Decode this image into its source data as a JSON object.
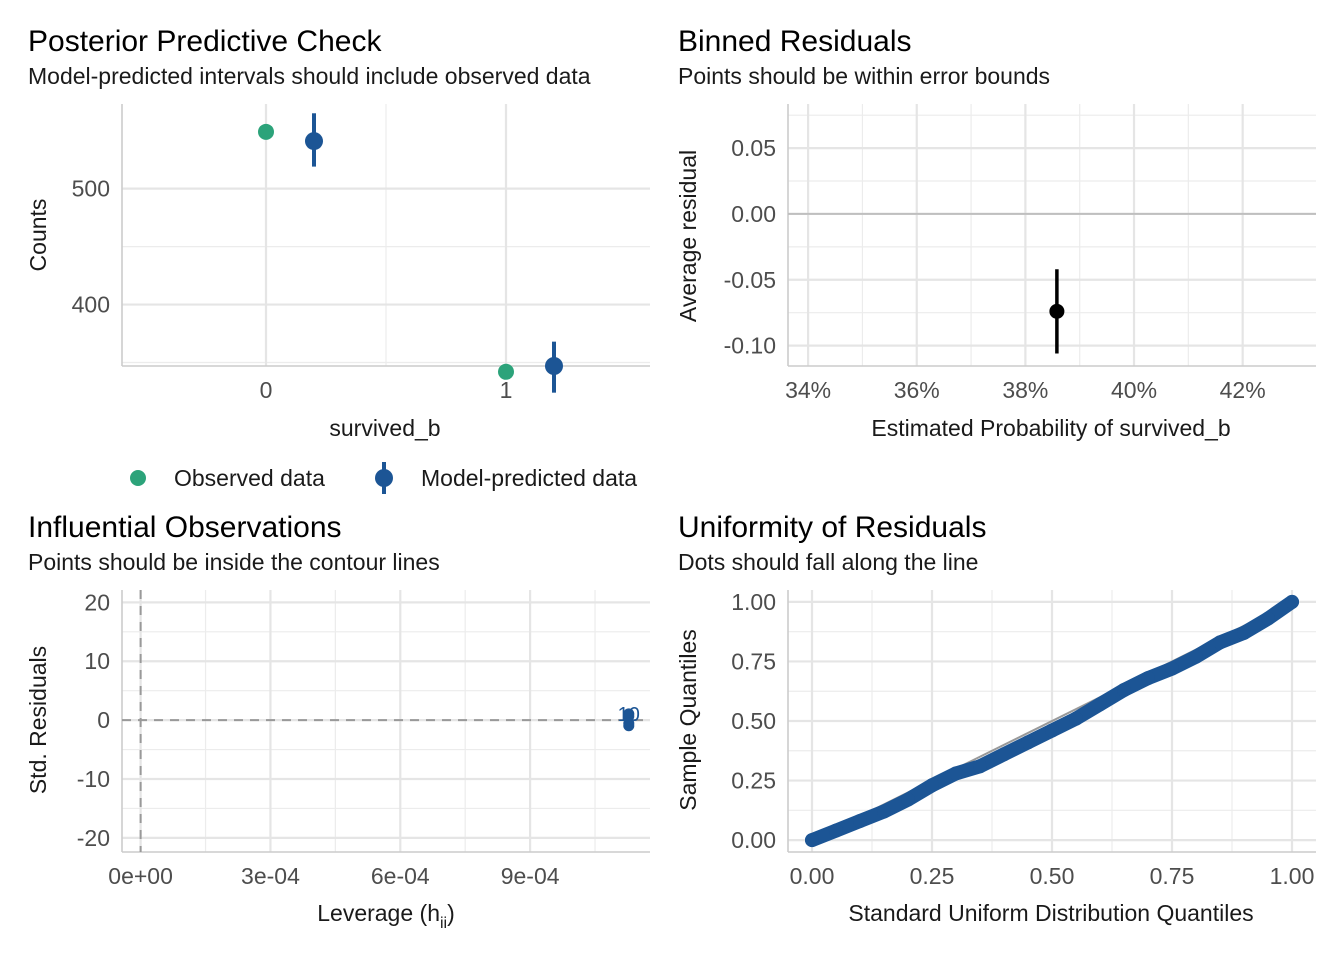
{
  "colors": {
    "observed": "#2ca37a",
    "predicted": "#1c5595",
    "binned_point": "#000000",
    "qq_points": "#1c5595",
    "reference_line": "#999999",
    "zero_line": "#bfbfbf"
  },
  "panels": {
    "ppc": {
      "title": "Posterior Predictive Check",
      "subtitle": "Model-predicted intervals should include observed data",
      "xlabel": "survived_b",
      "ylabel": "Counts",
      "legend": {
        "observed": "Observed data",
        "predicted": "Model-predicted data"
      }
    },
    "binned": {
      "title": "Binned Residuals",
      "subtitle": "Points should be within error bounds",
      "xlabel": "Estimated Probability of survived_b",
      "ylabel": "Average residual"
    },
    "influence": {
      "title": "Influential Observations",
      "subtitle": "Points should be inside the contour lines",
      "xlabel_main": "Leverage (h",
      "xlabel_sub": "ii",
      "xlabel_end": ")",
      "ylabel": "Std. Residuals"
    },
    "qq": {
      "title": "Uniformity of Residuals",
      "subtitle": "Dots should fall along the line",
      "xlabel": "Standard Uniform Distribution Quantiles",
      "ylabel": "Sample Quantiles"
    }
  },
  "chart_data": [
    {
      "id": "ppc",
      "type": "scatter",
      "xlim": [
        -0.6,
        1.6
      ],
      "ylim": [
        347,
        573
      ],
      "x_ticks": [
        0,
        1
      ],
      "x_tick_labels": [
        "0",
        "1"
      ],
      "y_ticks": [
        400,
        500
      ],
      "y_tick_labels": [
        "400",
        "500"
      ],
      "series": [
        {
          "name": "Observed data",
          "points": [
            {
              "x": 0,
              "y": 549
            },
            {
              "x": 1,
              "y": 342
            }
          ]
        },
        {
          "name": "Model-predicted data",
          "points": [
            {
              "x": 0,
              "y": 541,
              "low": 519,
              "high": 565
            },
            {
              "x": 1,
              "y": 347,
              "low": 324,
              "high": 368
            }
          ]
        }
      ],
      "legend": "bottom"
    },
    {
      "id": "binned",
      "type": "scatter",
      "xlim": [
        0.3363,
        0.4335
      ],
      "ylim": [
        -0.1155,
        0.0835
      ],
      "x_ticks": [
        0.34,
        0.36,
        0.38,
        0.4,
        0.42
      ],
      "x_tick_labels": [
        "34%",
        "36%",
        "38%",
        "40%",
        "42%"
      ],
      "y_ticks": [
        -0.1,
        -0.05,
        0.0,
        0.05
      ],
      "y_tick_labels": [
        "-0.10",
        "-0.05",
        "0.00",
        "0.05"
      ],
      "reference_y": 0,
      "points": [
        {
          "x": 0.3858,
          "y": -0.074,
          "low": -0.106,
          "high": -0.042
        }
      ]
    },
    {
      "id": "influence",
      "type": "scatter",
      "xlim": [
        -4.3e-05,
        0.001177
      ],
      "ylim": [
        -22.4,
        22.1
      ],
      "x_ticks": [
        0,
        0.0003,
        0.0006,
        0.0009
      ],
      "x_tick_labels": [
        "0e+00",
        "3e-04",
        "6e-04",
        "9e-04"
      ],
      "y_ticks": [
        -20,
        -10,
        0,
        10,
        20
      ],
      "y_tick_labels": [
        "-20",
        "-10",
        "0",
        "10",
        "20"
      ],
      "reference_x": 0,
      "reference_y": 0,
      "points": [
        {
          "x": 0.001128,
          "y": 1.05
        },
        {
          "x": 0.001128,
          "y": 0.65
        },
        {
          "x": 0.001128,
          "y": -0.55
        },
        {
          "x": 0.001128,
          "y": -0.95
        }
      ],
      "point_labels": [
        {
          "x": 0.001128,
          "y": 1.2,
          "text": "10"
        }
      ]
    },
    {
      "id": "qq",
      "type": "scatter",
      "xlim": [
        -0.05,
        1.05
      ],
      "ylim": [
        -0.05,
        1.05
      ],
      "x_ticks": [
        0,
        0.25,
        0.5,
        0.75,
        1
      ],
      "x_tick_labels": [
        "0.00",
        "0.25",
        "0.50",
        "0.75",
        "1.00"
      ],
      "y_ticks": [
        0,
        0.25,
        0.5,
        0.75,
        1
      ],
      "y_tick_labels": [
        "0.00",
        "0.25",
        "0.50",
        "0.75",
        "1.00"
      ],
      "reference_line": "identity",
      "points": [
        {
          "x": 0.0,
          "y": 0.0
        },
        {
          "x": 0.05,
          "y": 0.04
        },
        {
          "x": 0.1,
          "y": 0.08
        },
        {
          "x": 0.15,
          "y": 0.12
        },
        {
          "x": 0.2,
          "y": 0.17
        },
        {
          "x": 0.25,
          "y": 0.23
        },
        {
          "x": 0.3,
          "y": 0.28
        },
        {
          "x": 0.35,
          "y": 0.31
        },
        {
          "x": 0.4,
          "y": 0.36
        },
        {
          "x": 0.45,
          "y": 0.41
        },
        {
          "x": 0.5,
          "y": 0.46
        },
        {
          "x": 0.55,
          "y": 0.51
        },
        {
          "x": 0.6,
          "y": 0.57
        },
        {
          "x": 0.65,
          "y": 0.63
        },
        {
          "x": 0.7,
          "y": 0.68
        },
        {
          "x": 0.75,
          "y": 0.72
        },
        {
          "x": 0.8,
          "y": 0.77
        },
        {
          "x": 0.85,
          "y": 0.83
        },
        {
          "x": 0.9,
          "y": 0.87
        },
        {
          "x": 0.95,
          "y": 0.93
        },
        {
          "x": 1.0,
          "y": 1.0
        }
      ]
    }
  ]
}
